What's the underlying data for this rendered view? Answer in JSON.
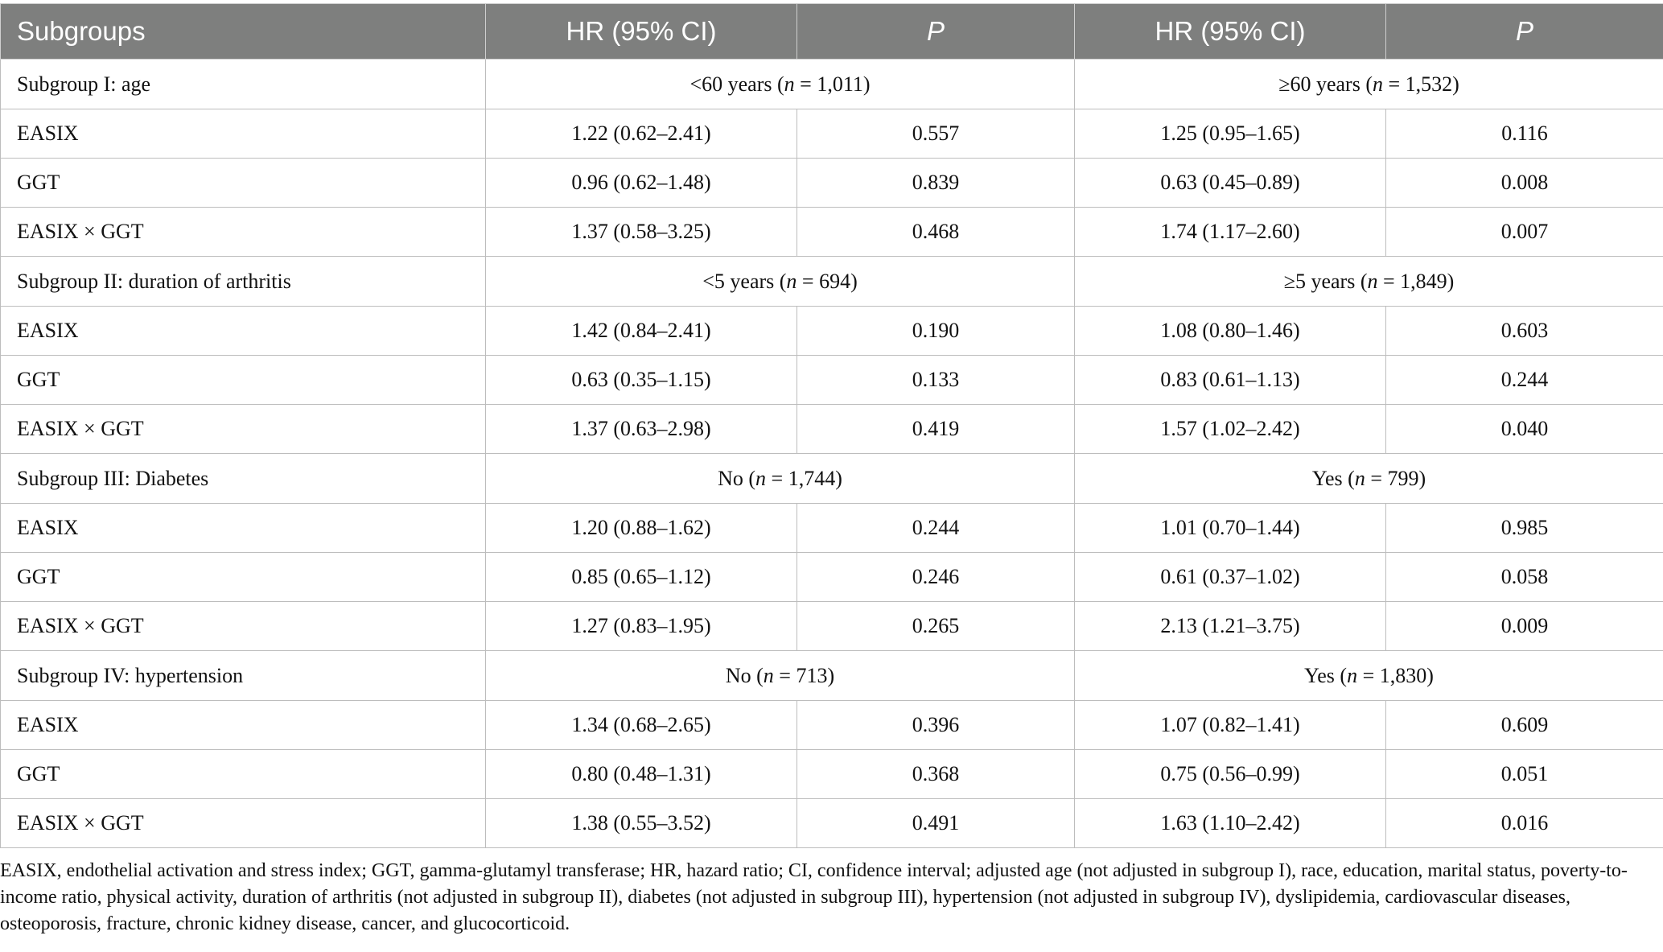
{
  "table": {
    "headers": [
      "Subgroups",
      "HR (95% CI)",
      "P",
      "HR (95% CI)",
      "P"
    ],
    "groups": [
      {
        "label": "Subgroup I: age",
        "left": {
          "prefix": "<60 years (",
          "n_label": "n",
          "suffix": " = 1,011)"
        },
        "right": {
          "prefix": "≥60 years (",
          "n_label": "n",
          "suffix": " = 1,532)"
        },
        "rows": [
          {
            "label": "EASIX",
            "hr1": "1.22 (0.62–2.41)",
            "p1": "0.557",
            "hr2": "1.25 (0.95–1.65)",
            "p2": "0.116"
          },
          {
            "label": "GGT",
            "hr1": "0.96 (0.62–1.48)",
            "p1": "0.839",
            "hr2": "0.63 (0.45–0.89)",
            "p2": "0.008"
          },
          {
            "label": "EASIX × GGT",
            "hr1": "1.37 (0.58–3.25)",
            "p1": "0.468",
            "hr2": "1.74 (1.17–2.60)",
            "p2": "0.007"
          }
        ]
      },
      {
        "label": "Subgroup II: duration of arthritis",
        "left": {
          "prefix": "<5 years (",
          "n_label": "n",
          "suffix": " = 694)"
        },
        "right": {
          "prefix": "≥5 years (",
          "n_label": "n",
          "suffix": " = 1,849)"
        },
        "rows": [
          {
            "label": "EASIX",
            "hr1": "1.42 (0.84–2.41)",
            "p1": "0.190",
            "hr2": "1.08 (0.80–1.46)",
            "p2": "0.603"
          },
          {
            "label": "GGT",
            "hr1": "0.63 (0.35–1.15)",
            "p1": "0.133",
            "hr2": "0.83 (0.61–1.13)",
            "p2": "0.244"
          },
          {
            "label": "EASIX × GGT",
            "hr1": "1.37 (0.63–2.98)",
            "p1": "0.419",
            "hr2": "1.57 (1.02–2.42)",
            "p2": "0.040"
          }
        ]
      },
      {
        "label": "Subgroup III: Diabetes",
        "left": {
          "prefix": "No (",
          "n_label": "n",
          "suffix": " = 1,744)"
        },
        "right": {
          "prefix": "Yes (",
          "n_label": "n",
          "suffix": " = 799)"
        },
        "rows": [
          {
            "label": "EASIX",
            "hr1": "1.20 (0.88–1.62)",
            "p1": "0.244",
            "hr2": "1.01 (0.70–1.44)",
            "p2": "0.985"
          },
          {
            "label": "GGT",
            "hr1": "0.85 (0.65–1.12)",
            "p1": "0.246",
            "hr2": "0.61 (0.37–1.02)",
            "p2": "0.058"
          },
          {
            "label": "EASIX × GGT",
            "hr1": "1.27 (0.83–1.95)",
            "p1": "0.265",
            "hr2": "2.13 (1.21–3.75)",
            "p2": "0.009"
          }
        ]
      },
      {
        "label": "Subgroup IV: hypertension",
        "left": {
          "prefix": "No (",
          "n_label": "n",
          "suffix": " = 713)"
        },
        "right": {
          "prefix": "Yes (",
          "n_label": "n",
          "suffix": " = 1,830)"
        },
        "rows": [
          {
            "label": "EASIX",
            "hr1": "1.34 (0.68–2.65)",
            "p1": "0.396",
            "hr2": "1.07 (0.82–1.41)",
            "p2": "0.609"
          },
          {
            "label": "GGT",
            "hr1": "0.80 (0.48–1.31)",
            "p1": "0.368",
            "hr2": "0.75 (0.56–0.99)",
            "p2": "0.051"
          },
          {
            "label": "EASIX × GGT",
            "hr1": "1.38 (0.55–3.52)",
            "p1": "0.491",
            "hr2": "1.63 (1.10–2.42)",
            "p2": "0.016"
          }
        ]
      }
    ]
  },
  "footnote": "EASIX, endothelial activation and stress index; GGT, gamma-glutamyl transferase; HR, hazard ratio; CI, confidence interval; adjusted age (not adjusted in subgroup I), race, education, marital status, poverty-to-income ratio, physical activity, duration of arthritis (not adjusted in subgroup II), diabetes (not adjusted in subgroup III), hypertension (not adjusted in subgroup IV), dyslipidemia, cardiovascular diseases, osteoporosis, fracture, chronic kidney disease, cancer, and glucocorticoid.",
  "colors": {
    "header_bg": "#7e7f7e",
    "header_text": "#ffffff",
    "border": "#bdbdbd"
  }
}
